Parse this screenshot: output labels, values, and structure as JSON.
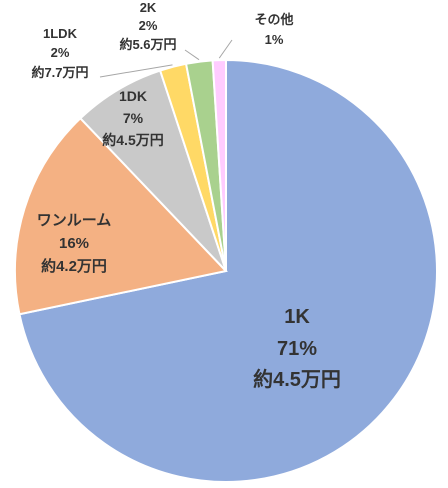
{
  "chart_data": {
    "type": "pie",
    "start": "top, clockwise",
    "categories": [
      "1K",
      "ワンルーム",
      "1DK",
      "1LDK",
      "2K",
      "その他"
    ],
    "values": [
      71,
      16,
      7,
      2,
      2,
      1
    ],
    "series": [
      {
        "values": [
          71,
          16,
          7,
          2,
          2,
          1
        ]
      }
    ],
    "percent_labels": [
      "71%",
      "16%",
      "7%",
      "2%",
      "2%",
      "1%"
    ],
    "rent_labels": [
      "約4.5万円",
      "約4.2万円",
      "約4.5万円",
      "約7.7万円",
      "約5.6万円",
      ""
    ],
    "colors": [
      "#8FAADC",
      "#F4B183",
      "#C9C9C9",
      "#FFD966",
      "#A9D18E",
      "#FFCCFF"
    ],
    "legend": "none"
  }
}
